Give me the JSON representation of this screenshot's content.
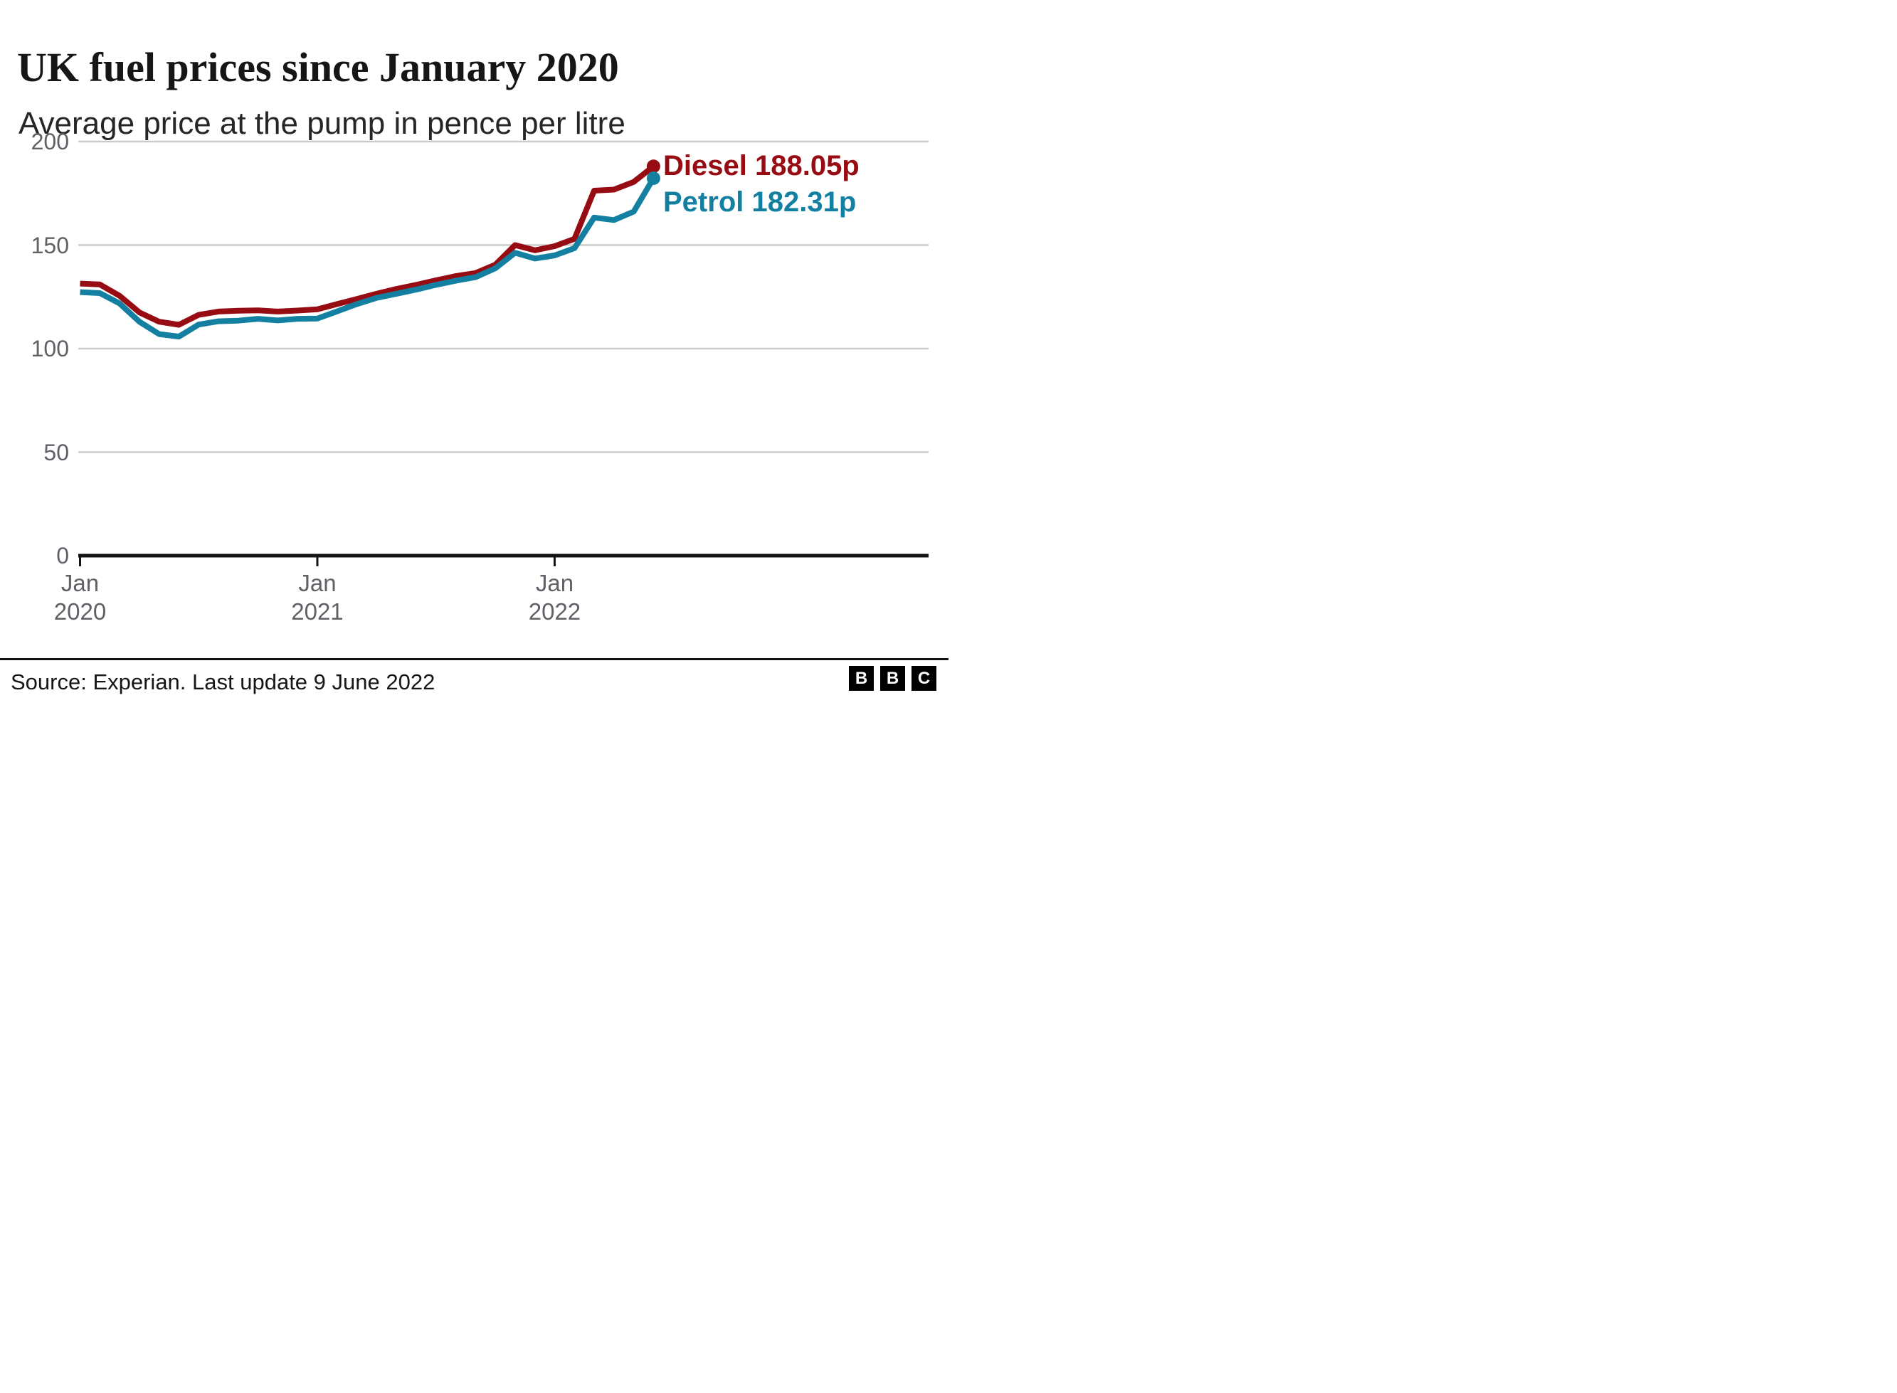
{
  "header": {
    "title": "UK fuel prices since January 2020",
    "subtitle": "Average price at the pump in pence per litre"
  },
  "chart_data": {
    "type": "line",
    "title": "UK fuel prices since January 2020",
    "subtitle": "Average price at the pump in pence per litre",
    "ylabel": "pence per litre",
    "xlabel": "",
    "ylim": [
      0,
      200
    ],
    "yticks": [
      0,
      50,
      100,
      150,
      200
    ],
    "grid": "horizontal",
    "legend_position": "end-of-line labels, right of final points",
    "x": [
      "Jan 2020",
      "Feb 2020",
      "Mar 2020",
      "Apr 2020",
      "May 2020",
      "Jun 2020",
      "Jul 2020",
      "Aug 2020",
      "Sep 2020",
      "Oct 2020",
      "Nov 2020",
      "Dec 2020",
      "Jan 2021",
      "Feb 2021",
      "Mar 2021",
      "Apr 2021",
      "May 2021",
      "Jun 2021",
      "Jul 2021",
      "Aug 2021",
      "Sep 2021",
      "Oct 2021",
      "Nov 2021",
      "Dec 2021",
      "Jan 2022",
      "Feb 2022",
      "Mar 2022",
      "Apr 2022",
      "May 2022",
      "9 Jun 2022"
    ],
    "xticks": [
      {
        "line1": "Jan",
        "line2": "2020",
        "month_index": 0
      },
      {
        "line1": "Jan",
        "line2": "2021",
        "month_index": 12
      },
      {
        "line1": "Jan",
        "line2": "2022",
        "month_index": 24
      }
    ],
    "series": [
      {
        "name": "Diesel",
        "end_label": "Diesel 188.05p",
        "final_value": "188.05p",
        "color": "#970C12",
        "values": [
          131.4,
          131.0,
          125.5,
          117.5,
          113.0,
          111.5,
          116.3,
          117.9,
          118.3,
          118.5,
          117.9,
          118.4,
          119.0,
          121.5,
          124.0,
          126.5,
          128.8,
          130.8,
          133.0,
          135.0,
          136.5,
          140.5,
          150.0,
          147.5,
          149.5,
          153.0,
          176.3,
          176.8,
          180.5,
          188.05
        ]
      },
      {
        "name": "Petrol",
        "end_label": "Petrol 182.31p",
        "final_value": "182.31p",
        "color": "#1380A1",
        "values": [
          127.3,
          126.8,
          121.8,
          113.0,
          107.0,
          105.8,
          111.6,
          113.2,
          113.5,
          114.4,
          113.6,
          114.4,
          114.5,
          118.0,
          121.5,
          124.5,
          126.5,
          128.5,
          130.8,
          132.8,
          134.5,
          138.8,
          146.3,
          143.5,
          145.0,
          148.5,
          163.3,
          162.1,
          166.2,
          182.31
        ]
      }
    ]
  },
  "footer": {
    "source": "Source: Experian. Last update 9 June 2022",
    "logo_letters": [
      "B",
      "B",
      "C"
    ]
  },
  "colors": {
    "gridline": "#CBCBCB",
    "axis": "#141414",
    "tick_label": "#606066"
  }
}
